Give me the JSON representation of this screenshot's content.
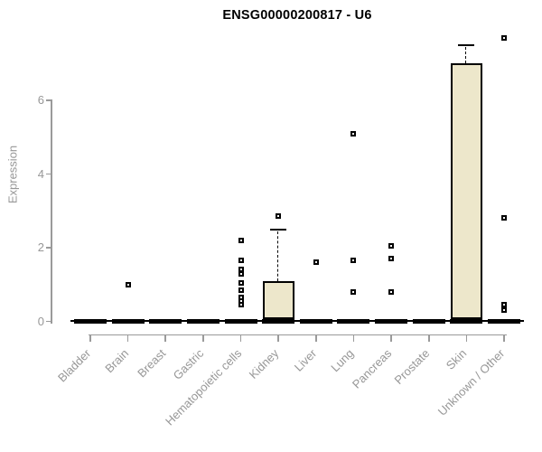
{
  "chart_data": {
    "type": "boxplot",
    "title": "ENSG00000200817 - U6",
    "xlabel": "",
    "ylabel": "Expression",
    "yticks": [
      0,
      2,
      4,
      6
    ],
    "ylim": [
      0,
      7.9
    ],
    "grid": false,
    "legend": "none",
    "axis_color": "#9a9a9a",
    "box_fill_color": "#EDE7CB",
    "box_border_color": "#000000",
    "categories": [
      "Bladder",
      "Brain",
      "Breast",
      "Gastric",
      "Hematopoietic cells",
      "Kidney",
      "Liver",
      "Lung",
      "Pancreas",
      "Prostate",
      "Skin",
      "Unknown / Other"
    ],
    "series": [
      {
        "name": "Bladder",
        "q1": 0,
        "median": 0,
        "q3": 0,
        "whisker_high": 0,
        "outliers": []
      },
      {
        "name": "Brain",
        "q1": 0,
        "median": 0,
        "q3": 0,
        "whisker_high": 0,
        "outliers": [
          1.0
        ]
      },
      {
        "name": "Breast",
        "q1": 0,
        "median": 0,
        "q3": 0,
        "whisker_high": 0,
        "outliers": []
      },
      {
        "name": "Gastric",
        "q1": 0,
        "median": 0,
        "q3": 0,
        "whisker_high": 0,
        "outliers": []
      },
      {
        "name": "Hematopoietic cells",
        "q1": 0,
        "median": 0,
        "q3": 0,
        "whisker_high": 0,
        "outliers": [
          2.2,
          1.65,
          1.4,
          1.3,
          1.05,
          0.85,
          0.65,
          0.55,
          0.45
        ]
      },
      {
        "name": "Kidney",
        "q1": 0.05,
        "median": 0,
        "q3": 1.1,
        "whisker_high": 2.5,
        "outliers": [
          2.85
        ]
      },
      {
        "name": "Liver",
        "q1": 0,
        "median": 0,
        "q3": 0,
        "whisker_high": 0,
        "outliers": [
          1.6
        ]
      },
      {
        "name": "Lung",
        "q1": 0,
        "median": 0,
        "q3": 0,
        "whisker_high": 0,
        "outliers": [
          5.1,
          1.65,
          0.8
        ]
      },
      {
        "name": "Pancreas",
        "q1": 0,
        "median": 0,
        "q3": 0,
        "whisker_high": 0,
        "outliers": [
          2.05,
          1.7,
          0.8
        ]
      },
      {
        "name": "Prostate",
        "q1": 0,
        "median": 0,
        "q3": 0,
        "whisker_high": 0,
        "outliers": []
      },
      {
        "name": "Skin",
        "q1": 0.05,
        "median": 0,
        "q3": 7.0,
        "whisker_high": 7.5,
        "outliers": []
      },
      {
        "name": "Unknown / Other",
        "q1": 0,
        "median": 0,
        "q3": 0,
        "whisker_high": 0,
        "outliers": [
          7.7,
          2.8,
          0.45,
          0.3
        ]
      }
    ]
  }
}
